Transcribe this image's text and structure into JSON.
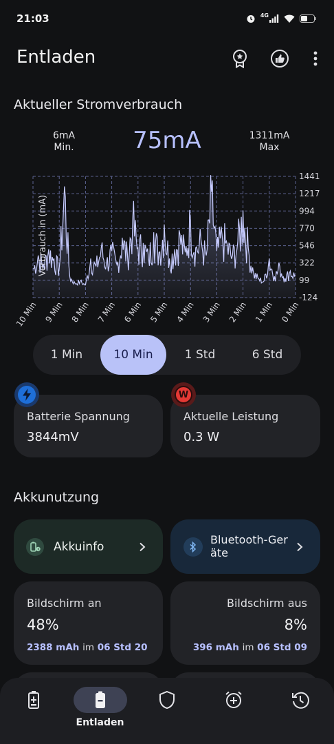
{
  "status": {
    "time": "21:03",
    "network": "4G"
  },
  "header": {
    "title": "Entladen"
  },
  "current": {
    "section_title": "Aktueller Stromverbrauch",
    "min_value": "6mA",
    "min_label": "Min.",
    "current_value": "75mA",
    "max_value": "1311mA",
    "max_label": "Max"
  },
  "chart_data": {
    "type": "area",
    "ylabel": "Verbrauch in (mA)",
    "y_ticks": [
      "1441",
      "1217",
      "994",
      "770",
      "546",
      "322",
      "99",
      "-124"
    ],
    "ylim": [
      -124,
      1441
    ],
    "x_ticks": [
      "10 Min",
      "9 Min",
      "8 Min",
      "7 Min",
      "6 Min",
      "5 Min",
      "4 Min",
      "3 Min",
      "2 Min",
      "1 Min",
      "0 Min"
    ],
    "xlim": [
      10,
      0
    ],
    "grid": true,
    "series": [
      {
        "x": [
          10,
          9.8,
          9.6,
          9.4,
          9.2,
          9.0,
          8.8,
          8.6,
          8.4,
          8.2,
          8.0,
          7.8,
          7.6,
          7.4,
          7.2,
          7.0,
          6.8,
          6.6,
          6.4,
          6.2,
          6.0,
          5.8,
          5.6,
          5.4,
          5.2,
          5.0,
          4.8,
          4.6,
          4.4,
          4.2,
          4.0,
          3.8,
          3.6,
          3.4,
          3.2,
          3.0,
          2.8,
          2.6,
          2.4,
          2.2,
          2.0,
          1.8,
          1.6,
          1.4,
          1.2,
          1.0,
          0.8,
          0.6,
          0.4,
          0.2,
          0.0
        ],
        "y": [
          250,
          420,
          300,
          500,
          380,
          260,
          1311,
          150,
          60,
          90,
          40,
          380,
          280,
          520,
          330,
          480,
          300,
          650,
          420,
          900,
          520,
          580,
          380,
          720,
          460,
          820,
          380,
          500,
          690,
          460,
          880,
          520,
          620,
          420,
          1240,
          480,
          700,
          560,
          420,
          600,
          1000,
          520,
          200,
          120,
          90,
          380,
          150,
          280,
          130,
          220,
          160
        ]
      }
    ]
  },
  "segments": {
    "items": [
      "1 Min",
      "10 Min",
      "1 Std",
      "6 Std"
    ],
    "active": "10 Min"
  },
  "cards": {
    "voltage": {
      "label": "Batterie Spannung",
      "value": "3844mV"
    },
    "power": {
      "label": "Aktuelle Leistung",
      "value": "0.3 W",
      "badge_letter": "W"
    }
  },
  "usage": {
    "section_title": "Akkunutzung",
    "akkuinfo": "Akkuinfo",
    "bluetooth_line1": "Bluetooth-Ger",
    "bluetooth_line2": "äte",
    "screen_on": {
      "label": "Bildschirm an",
      "percent": "48%",
      "mah": "2388 mAh",
      "word": "im",
      "time": "06 Std 20"
    },
    "screen_off": {
      "label": "Bildschirm aus",
      "percent": "8%",
      "mah": "396 mAh",
      "word": "im",
      "time": "06 Std 09"
    }
  },
  "nav": {
    "active_label": "Entladen"
  },
  "colors": {
    "accent": "#b9c2f8",
    "background": "#111214",
    "card": "#222327",
    "voltage_badge": "#1e6fd9",
    "power_badge": "#e53935"
  }
}
